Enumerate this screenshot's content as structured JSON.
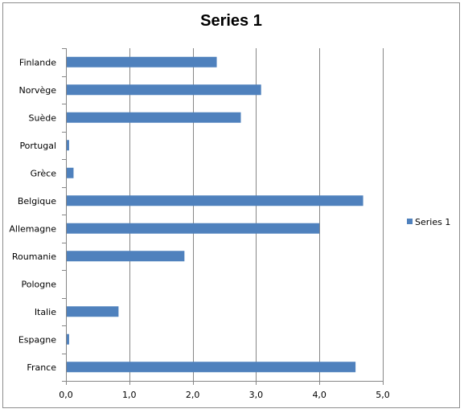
{
  "chart_data": {
    "type": "bar",
    "orientation": "horizontal",
    "title": "Series 1",
    "categories": [
      "Finlande",
      "Norvège",
      "Suède",
      "Portugal",
      "Grèce",
      "Belgique",
      "Allemagne",
      "Roumanie",
      "Pologne",
      "Italie",
      "Espagne",
      "France"
    ],
    "series": [
      {
        "name": "Series 1",
        "color": "#4F81BD",
        "values": [
          2.38,
          3.08,
          2.76,
          0.05,
          0.12,
          4.69,
          4.0,
          1.87,
          0.0,
          0.83,
          0.05,
          4.57
        ]
      }
    ],
    "xlim": [
      0,
      5
    ],
    "xticks": [
      0,
      1,
      2,
      3,
      4,
      5
    ],
    "xtick_labels": [
      "0,0",
      "1,0",
      "2,0",
      "3,0",
      "4,0",
      "5,0"
    ],
    "grid": "vertical",
    "legend": "right"
  }
}
